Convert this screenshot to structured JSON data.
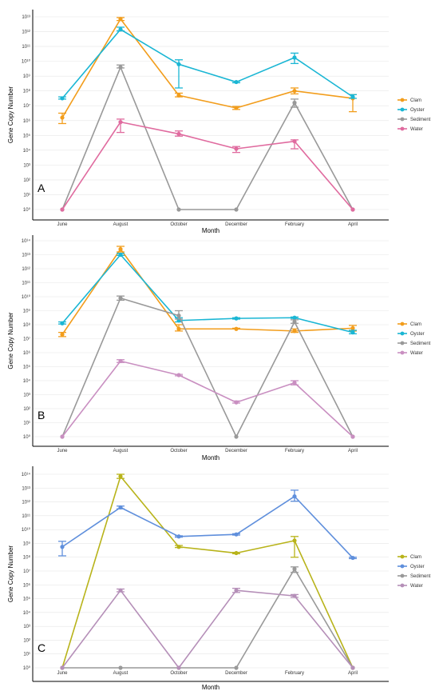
{
  "chart_data": [
    {
      "type": "line",
      "panel": "A",
      "categories": [
        "June",
        "August",
        "October",
        "December",
        "February",
        "April"
      ],
      "xlabel": "Month",
      "ylabel": "Gene Copy Number",
      "yscale": "log10",
      "ylim": [
        0,
        13
      ],
      "yticks": [
        0,
        1,
        2,
        3,
        4,
        5,
        6,
        7,
        8,
        9,
        10,
        11,
        12,
        13
      ],
      "yticklabels": [
        "10⁰",
        "10¹",
        "10²",
        "10³",
        "10⁴",
        "10⁵",
        "10⁶",
        "10⁷",
        "10⁸",
        "10⁹",
        "10¹⁰",
        "10¹¹",
        "10¹²",
        "10¹³"
      ],
      "legend_position": "right",
      "series": [
        {
          "name": "Clam",
          "color": "#f29d1c",
          "values": [
            6.2,
            12.85,
            7.7,
            6.85,
            8.0,
            7.5
          ],
          "err_low": [
            5.8,
            12.75,
            7.6,
            6.75,
            7.8,
            6.6
          ],
          "err_high": [
            6.5,
            12.95,
            7.85,
            6.95,
            8.2,
            7.75
          ]
        },
        {
          "name": "Oyster",
          "color": "#1ab6d4",
          "values": [
            7.5,
            12.15,
            9.8,
            8.6,
            10.25,
            7.6
          ],
          "err_low": [
            7.45,
            12.05,
            8.2,
            8.55,
            9.85,
            7.5
          ],
          "err_high": [
            7.6,
            12.3,
            10.1,
            8.65,
            10.55,
            7.75
          ]
        },
        {
          "name": "Sediment",
          "color": "#999999",
          "values": [
            0,
            9.6,
            0,
            0,
            7.2,
            0
          ],
          "err_low": [
            0,
            9.55,
            0,
            0,
            6.9,
            0
          ],
          "err_high": [
            0,
            9.75,
            0,
            0,
            7.45,
            0
          ]
        },
        {
          "name": "Water",
          "color": "#e06b9f",
          "values": [
            0,
            5.9,
            5.1,
            4.1,
            4.6,
            0
          ],
          "err_low": [
            0,
            5.2,
            4.95,
            3.85,
            4.1,
            0
          ],
          "err_high": [
            0,
            6.1,
            5.3,
            4.25,
            4.7,
            0
          ]
        }
      ]
    },
    {
      "type": "line",
      "panel": "B",
      "categories": [
        "June",
        "August",
        "October",
        "December",
        "February",
        "April"
      ],
      "xlabel": "Month",
      "ylabel": "Gene Copy Number",
      "yscale": "log10",
      "ylim": [
        0,
        14
      ],
      "yticks": [
        0,
        1,
        2,
        3,
        4,
        5,
        6,
        7,
        8,
        9,
        10,
        11,
        12,
        13,
        14
      ],
      "yticklabels": [
        "10⁰",
        "10¹",
        "10²",
        "10³",
        "10⁴",
        "10⁵",
        "10⁶",
        "10⁷",
        "10⁸",
        "10⁹",
        "10¹⁰",
        "10¹¹",
        "10¹²",
        "10¹³",
        "10¹⁴"
      ],
      "legend_position": "right",
      "series": [
        {
          "name": "Clam",
          "color": "#f29d1c",
          "values": [
            7.3,
            13.4,
            7.7,
            7.7,
            7.55,
            7.75
          ],
          "err_low": [
            7.15,
            13.2,
            7.55,
            7.7,
            7.45,
            7.55
          ],
          "err_high": [
            7.45,
            13.6,
            8.0,
            7.75,
            7.7,
            7.95
          ]
        },
        {
          "name": "Oyster",
          "color": "#1ab6d4",
          "values": [
            8.1,
            13.0,
            8.3,
            8.45,
            8.5,
            7.45
          ],
          "err_low": [
            8.05,
            12.95,
            8.2,
            8.4,
            8.45,
            7.35
          ],
          "err_high": [
            8.2,
            13.1,
            8.5,
            8.5,
            8.55,
            7.6
          ]
        },
        {
          "name": "Sediment",
          "color": "#999999",
          "values": [
            0,
            9.9,
            8.65,
            0,
            8.2,
            0
          ],
          "err_low": [
            0,
            9.75,
            8.4,
            0,
            8.1,
            0
          ],
          "err_high": [
            0,
            10.05,
            9.0,
            0,
            8.35,
            0
          ]
        },
        {
          "name": "Water",
          "color": "#c98fc1",
          "values": [
            0,
            5.4,
            4.4,
            2.45,
            3.85,
            0
          ],
          "err_low": [
            0,
            5.3,
            4.35,
            2.4,
            3.7,
            0
          ],
          "err_high": [
            0,
            5.5,
            4.45,
            2.55,
            4.0,
            0
          ]
        }
      ]
    },
    {
      "type": "line",
      "panel": "C",
      "categories": [
        "June",
        "August",
        "October",
        "December",
        "February",
        "April"
      ],
      "xlabel": "Month",
      "ylabel": "Gene Copy Number",
      "yscale": "log10",
      "ylim": [
        0,
        14
      ],
      "yticks": [
        0,
        1,
        2,
        3,
        4,
        5,
        6,
        7,
        8,
        9,
        10,
        11,
        12,
        13,
        14
      ],
      "yticklabels": [
        "10⁰",
        "10¹",
        "10²",
        "10³",
        "10⁴",
        "10⁵",
        "10⁶",
        "10⁷",
        "10⁸",
        "10⁹",
        "10¹⁰",
        "10¹¹",
        "10¹²",
        "10¹³",
        "10¹⁴"
      ],
      "legend_position": "right",
      "series": [
        {
          "name": "Clam",
          "color": "#b8b31a",
          "values": [
            0,
            13.85,
            8.75,
            8.3,
            9.2,
            0
          ],
          "err_low": [
            0,
            13.7,
            8.7,
            8.25,
            8.0,
            0
          ],
          "err_high": [
            0,
            14.0,
            8.85,
            8.35,
            9.5,
            0
          ]
        },
        {
          "name": "Oyster",
          "color": "#5f8fdc",
          "values": [
            8.75,
            11.6,
            9.5,
            9.65,
            12.4,
            7.95
          ],
          "err_low": [
            8.1,
            11.5,
            9.45,
            9.6,
            12.05,
            7.9
          ],
          "err_high": [
            9.15,
            11.7,
            9.55,
            9.7,
            12.85,
            8.0
          ]
        },
        {
          "name": "Sediment",
          "color": "#999999",
          "values": [
            0,
            0,
            0,
            0,
            7.15,
            0
          ],
          "err_low": [
            0,
            0,
            0,
            0,
            6.9,
            0
          ],
          "err_high": [
            0,
            0,
            0,
            0,
            7.3,
            0
          ]
        },
        {
          "name": "Water",
          "color": "#b58fb8",
          "values": [
            0,
            5.6,
            0,
            5.6,
            5.2,
            0
          ],
          "err_low": [
            0,
            5.5,
            0,
            5.45,
            5.1,
            0
          ],
          "err_high": [
            0,
            5.7,
            0,
            5.75,
            5.3,
            0
          ]
        }
      ]
    }
  ]
}
